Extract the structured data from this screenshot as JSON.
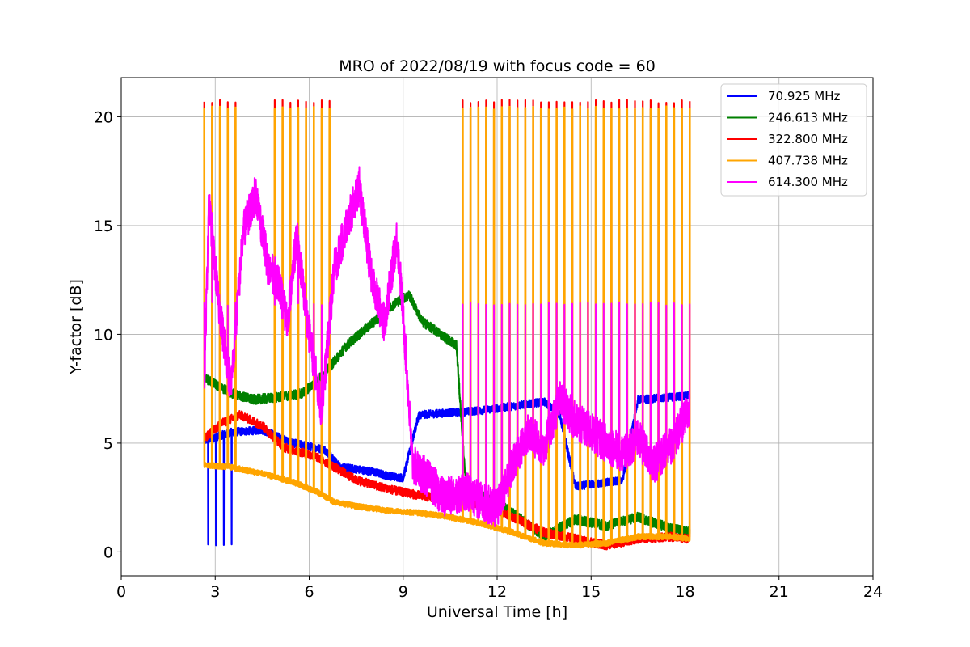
{
  "chart_data": {
    "type": "line",
    "title": "MRO of 2022/08/19 with focus code = 60",
    "xlabel": "Universal Time [h]",
    "ylabel": "Y-factor [dB]",
    "xlim": [
      0,
      24
    ],
    "ylim": [
      -1.1,
      21.8
    ],
    "xticks": [
      0,
      3,
      6,
      9,
      12,
      15,
      18,
      21,
      24
    ],
    "yticks": [
      0,
      5,
      10,
      15,
      20
    ],
    "grid": true,
    "legend_position": "top-right",
    "time_range": [
      2.65,
      18.15
    ],
    "series": [
      {
        "name": " 70.925 MHz",
        "color": "#0000ff",
        "points": [
          [
            2.65,
            5.1
          ],
          [
            3.5,
            5.5
          ],
          [
            4.5,
            5.6
          ],
          [
            5.5,
            5.0
          ],
          [
            6.5,
            4.7
          ],
          [
            7.0,
            3.9
          ],
          [
            8.0,
            3.7
          ],
          [
            8.5,
            3.5
          ],
          [
            9.0,
            3.4
          ],
          [
            9.5,
            6.3
          ],
          [
            10.5,
            6.4
          ],
          [
            11.5,
            6.5
          ],
          [
            12.5,
            6.7
          ],
          [
            13.5,
            6.9
          ],
          [
            14.0,
            6.3
          ],
          [
            14.5,
            3.0
          ],
          [
            15.5,
            3.2
          ],
          [
            16.0,
            3.3
          ],
          [
            16.5,
            7.0
          ],
          [
            17.5,
            7.1
          ],
          [
            18.15,
            7.2
          ]
        ],
        "dip_floor": 0.25
      },
      {
        "name": "246.613 MHz",
        "color": "#008000",
        "points": [
          [
            2.65,
            8.0
          ],
          [
            3.5,
            7.3
          ],
          [
            4.2,
            7.0
          ],
          [
            5.0,
            7.1
          ],
          [
            5.8,
            7.3
          ],
          [
            6.5,
            8.2
          ],
          [
            7.2,
            9.5
          ],
          [
            8.0,
            10.5
          ],
          [
            8.8,
            11.5
          ],
          [
            9.2,
            11.8
          ],
          [
            9.6,
            10.6
          ],
          [
            10.2,
            10.0
          ],
          [
            10.7,
            9.5
          ],
          [
            11.0,
            3.0
          ],
          [
            11.5,
            2.6
          ],
          [
            12.5,
            1.8
          ],
          [
            13.5,
            0.7
          ],
          [
            14.5,
            1.5
          ],
          [
            15.5,
            1.2
          ],
          [
            16.5,
            1.6
          ],
          [
            17.5,
            1.1
          ],
          [
            18.15,
            0.9
          ]
        ]
      },
      {
        "name": "322.800 MHz",
        "color": "#ff0000",
        "points": [
          [
            2.65,
            5.2
          ],
          [
            3.2,
            5.9
          ],
          [
            3.8,
            6.3
          ],
          [
            4.5,
            5.8
          ],
          [
            5.2,
            4.8
          ],
          [
            6.2,
            4.4
          ],
          [
            6.8,
            3.9
          ],
          [
            7.5,
            3.3
          ],
          [
            8.0,
            3.1
          ],
          [
            8.8,
            2.8
          ],
          [
            9.5,
            2.6
          ],
          [
            10.5,
            2.4
          ],
          [
            11.5,
            2.2
          ],
          [
            12.5,
            1.6
          ],
          [
            13.5,
            0.9
          ],
          [
            14.5,
            0.6
          ],
          [
            15.5,
            0.3
          ],
          [
            16.5,
            0.6
          ],
          [
            17.5,
            0.7
          ],
          [
            18.15,
            0.6
          ]
        ],
        "peak": 20.7
      },
      {
        "name": "407.738 MHz",
        "color": "#ffa500",
        "points": [
          [
            2.65,
            4.0
          ],
          [
            3.5,
            3.9
          ],
          [
            4.5,
            3.6
          ],
          [
            5.5,
            3.2
          ],
          [
            6.2,
            2.8
          ],
          [
            6.8,
            2.3
          ],
          [
            7.5,
            2.1
          ],
          [
            8.5,
            1.9
          ],
          [
            9.5,
            1.8
          ],
          [
            10.5,
            1.6
          ],
          [
            11.5,
            1.3
          ],
          [
            12.5,
            0.9
          ],
          [
            13.5,
            0.4
          ],
          [
            14.5,
            0.3
          ],
          [
            15.5,
            0.4
          ],
          [
            16.5,
            0.7
          ],
          [
            17.5,
            0.7
          ],
          [
            18.15,
            0.6
          ]
        ],
        "peak": 20.4
      },
      {
        "name": "614.300 MHz",
        "color": "#ff00ff",
        "points": [
          [
            2.65,
            7.5
          ],
          [
            2.8,
            16.1
          ],
          [
            3.1,
            11.5
          ],
          [
            3.5,
            7.5
          ],
          [
            3.9,
            14.8
          ],
          [
            4.3,
            16.5
          ],
          [
            4.7,
            13.0
          ],
          [
            5.0,
            12.5
          ],
          [
            5.3,
            10.5
          ],
          [
            5.6,
            14.5
          ],
          [
            6.0,
            10.0
          ],
          [
            6.4,
            6.5
          ],
          [
            6.8,
            13.0
          ],
          [
            7.2,
            15.0
          ],
          [
            7.6,
            16.8
          ],
          [
            8.0,
            12.5
          ],
          [
            8.4,
            10.5
          ],
          [
            8.8,
            14.5
          ],
          [
            9.0,
            11.0
          ],
          [
            9.3,
            4.0
          ],
          [
            9.7,
            3.5
          ],
          [
            10.3,
            2.5
          ],
          [
            11.0,
            2.8
          ],
          [
            11.5,
            2.3
          ],
          [
            12.0,
            2.0
          ],
          [
            12.5,
            4.0
          ],
          [
            13.0,
            5.5
          ],
          [
            13.5,
            4.8
          ],
          [
            14.0,
            7.0
          ],
          [
            14.5,
            6.0
          ],
          [
            15.0,
            5.5
          ],
          [
            15.5,
            5.0
          ],
          [
            16.0,
            4.5
          ],
          [
            16.5,
            5.2
          ],
          [
            17.0,
            4.0
          ],
          [
            17.5,
            4.8
          ],
          [
            18.15,
            6.5
          ]
        ],
        "peak": 11.4
      }
    ]
  }
}
